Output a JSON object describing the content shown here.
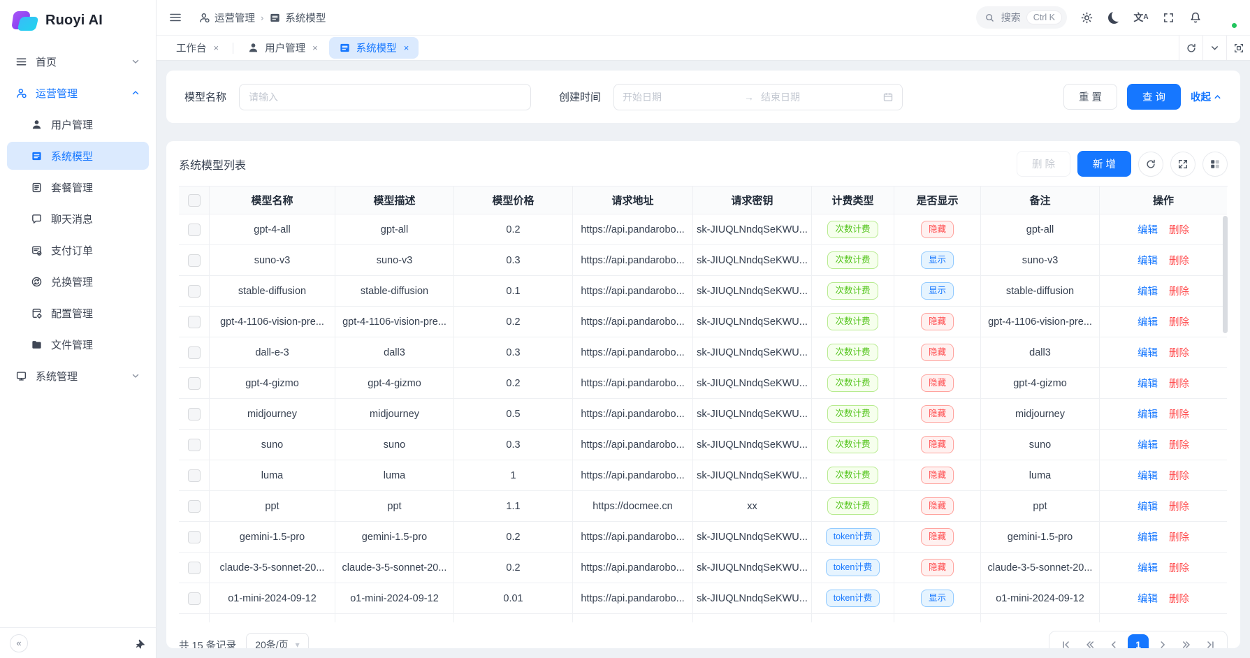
{
  "app": {
    "logo_text": "Ruoyi AI"
  },
  "colors": {
    "primary": "#1677ff",
    "danger": "#ff4d4f",
    "badge_green_text": "#52c41a",
    "badge_blue_text": "#1677ff",
    "badge_red_text": "#ff4d4f",
    "active_bg": "#dbeafe"
  },
  "sidebar": {
    "items": [
      {
        "label": "首页",
        "icon": "home-menu-icon",
        "level": "top",
        "chevron": "down"
      },
      {
        "label": "运营管理",
        "icon": "operator-icon",
        "level": "top",
        "chevron": "up",
        "highlight": true
      },
      {
        "label": "用户管理",
        "icon": "user-icon",
        "level": "sub"
      },
      {
        "label": "系统模型",
        "icon": "model-icon",
        "level": "sub",
        "selected": true
      },
      {
        "label": "套餐管理",
        "icon": "package-icon",
        "level": "sub"
      },
      {
        "label": "聊天消息",
        "icon": "chat-icon",
        "level": "sub"
      },
      {
        "label": "支付订单",
        "icon": "payment-icon",
        "level": "sub"
      },
      {
        "label": "兑换管理",
        "icon": "exchange-icon",
        "level": "sub"
      },
      {
        "label": "配置管理",
        "icon": "config-icon",
        "level": "sub"
      },
      {
        "label": "文件管理",
        "icon": "folder-icon",
        "level": "sub"
      },
      {
        "label": "系统管理",
        "icon": "system-icon",
        "level": "top",
        "chevron": "down"
      }
    ],
    "footer": {
      "collapse_glyph": "«"
    }
  },
  "topbar": {
    "breadcrumb": [
      {
        "icon": "operator-icon",
        "label": "运营管理"
      },
      {
        "icon": "model-icon",
        "label": "系统模型"
      }
    ],
    "search": {
      "label": "搜索",
      "shortcut": "Ctrl K"
    },
    "icons": [
      "gear-icon",
      "moon-icon",
      "translate-icon",
      "fullscreen-icon",
      "bell-icon"
    ]
  },
  "tabbar": {
    "tabs": [
      {
        "label": "工作台"
      },
      {
        "label": "用户管理",
        "icon": "user-icon"
      },
      {
        "label": "系统模型",
        "icon": "model-icon",
        "active": true
      }
    ]
  },
  "filter": {
    "name_label": "模型名称",
    "name_placeholder": "请输入",
    "date_label": "创建时间",
    "date_start_placeholder": "开始日期",
    "date_end_placeholder": "结束日期",
    "reset_label": "重 置",
    "query_label": "查 询",
    "collapse_label": "收起"
  },
  "table": {
    "title": "系统模型列表",
    "delete_label": "删 除",
    "add_label": "新 增",
    "edit_label": "编辑",
    "row_delete_label": "删除",
    "columns": [
      "模型名称",
      "模型描述",
      "模型价格",
      "请求地址",
      "请求密钥",
      "计费类型",
      "是否显示",
      "备注",
      "操作"
    ],
    "rows": [
      {
        "name": "gpt-4-all",
        "desc": "gpt-all",
        "price": "0.2",
        "url": "https://api.pandarobo...",
        "key": "sk-JIUQLNndqSeKWU...",
        "billing": "次数计费",
        "billing_variant": "green",
        "visible": "隐藏",
        "visible_variant": "red",
        "remark": "gpt-all"
      },
      {
        "name": "suno-v3",
        "desc": "suno-v3",
        "price": "0.3",
        "url": "https://api.pandarobo...",
        "key": "sk-JIUQLNndqSeKWU...",
        "billing": "次数计费",
        "billing_variant": "green",
        "visible": "显示",
        "visible_variant": "blue",
        "remark": "suno-v3"
      },
      {
        "name": "stable-diffusion",
        "desc": "stable-diffusion",
        "price": "0.1",
        "url": "https://api.pandarobo...",
        "key": "sk-JIUQLNndqSeKWU...",
        "billing": "次数计费",
        "billing_variant": "green",
        "visible": "显示",
        "visible_variant": "blue",
        "remark": "stable-diffusion"
      },
      {
        "name": "gpt-4-1106-vision-pre...",
        "desc": "gpt-4-1106-vision-pre...",
        "price": "0.2",
        "url": "https://api.pandarobo...",
        "key": "sk-JIUQLNndqSeKWU...",
        "billing": "次数计费",
        "billing_variant": "green",
        "visible": "隐藏",
        "visible_variant": "red",
        "remark": "gpt-4-1106-vision-pre..."
      },
      {
        "name": "dall-e-3",
        "desc": "dall3",
        "price": "0.3",
        "url": "https://api.pandarobo...",
        "key": "sk-JIUQLNndqSeKWU...",
        "billing": "次数计费",
        "billing_variant": "green",
        "visible": "隐藏",
        "visible_variant": "red",
        "remark": "dall3"
      },
      {
        "name": "gpt-4-gizmo",
        "desc": "gpt-4-gizmo",
        "price": "0.2",
        "url": "https://api.pandarobo...",
        "key": "sk-JIUQLNndqSeKWU...",
        "billing": "次数计费",
        "billing_variant": "green",
        "visible": "隐藏",
        "visible_variant": "red",
        "remark": "gpt-4-gizmo"
      },
      {
        "name": "midjourney",
        "desc": "midjourney",
        "price": "0.5",
        "url": "https://api.pandarobo...",
        "key": "sk-JIUQLNndqSeKWU...",
        "billing": "次数计费",
        "billing_variant": "green",
        "visible": "隐藏",
        "visible_variant": "red",
        "remark": "midjourney"
      },
      {
        "name": "suno",
        "desc": "suno",
        "price": "0.3",
        "url": "https://api.pandarobo...",
        "key": "sk-JIUQLNndqSeKWU...",
        "billing": "次数计费",
        "billing_variant": "green",
        "visible": "隐藏",
        "visible_variant": "red",
        "remark": "suno"
      },
      {
        "name": "luma",
        "desc": "luma",
        "price": "1",
        "url": "https://api.pandarobo...",
        "key": "sk-JIUQLNndqSeKWU...",
        "billing": "次数计费",
        "billing_variant": "green",
        "visible": "隐藏",
        "visible_variant": "red",
        "remark": "luma"
      },
      {
        "name": "ppt",
        "desc": "ppt",
        "price": "1.1",
        "url": "https://docmee.cn",
        "key": "xx",
        "billing": "次数计费",
        "billing_variant": "green",
        "visible": "隐藏",
        "visible_variant": "red",
        "remark": "ppt"
      },
      {
        "name": "gemini-1.5-pro",
        "desc": "gemini-1.5-pro",
        "price": "0.2",
        "url": "https://api.pandarobo...",
        "key": "sk-JIUQLNndqSeKWU...",
        "billing": "token计费",
        "billing_variant": "blue",
        "visible": "隐藏",
        "visible_variant": "red",
        "remark": "gemini-1.5-pro"
      },
      {
        "name": "claude-3-5-sonnet-20...",
        "desc": "claude-3-5-sonnet-20...",
        "price": "0.2",
        "url": "https://api.pandarobo...",
        "key": "sk-JIUQLNndqSeKWU...",
        "billing": "token计费",
        "billing_variant": "blue",
        "visible": "隐藏",
        "visible_variant": "red",
        "remark": "claude-3-5-sonnet-20..."
      },
      {
        "name": "o1-mini-2024-09-12",
        "desc": "o1-mini-2024-09-12",
        "price": "0.01",
        "url": "https://api.pandarobo...",
        "key": "sk-JIUQLNndqSeKWU...",
        "billing": "token计费",
        "billing_variant": "blue",
        "visible": "显示",
        "visible_variant": "blue",
        "remark": "o1-mini-2024-09-12"
      },
      {
        "partial": true,
        "name": "",
        "desc": "",
        "price": "",
        "url": "",
        "key": "",
        "billing": "",
        "billing_variant": "",
        "visible": "",
        "visible_variant": "",
        "remark": ""
      }
    ]
  },
  "pagination": {
    "total_text": "共 15 条记录",
    "page_size": "20条/页",
    "current_page": "1"
  }
}
